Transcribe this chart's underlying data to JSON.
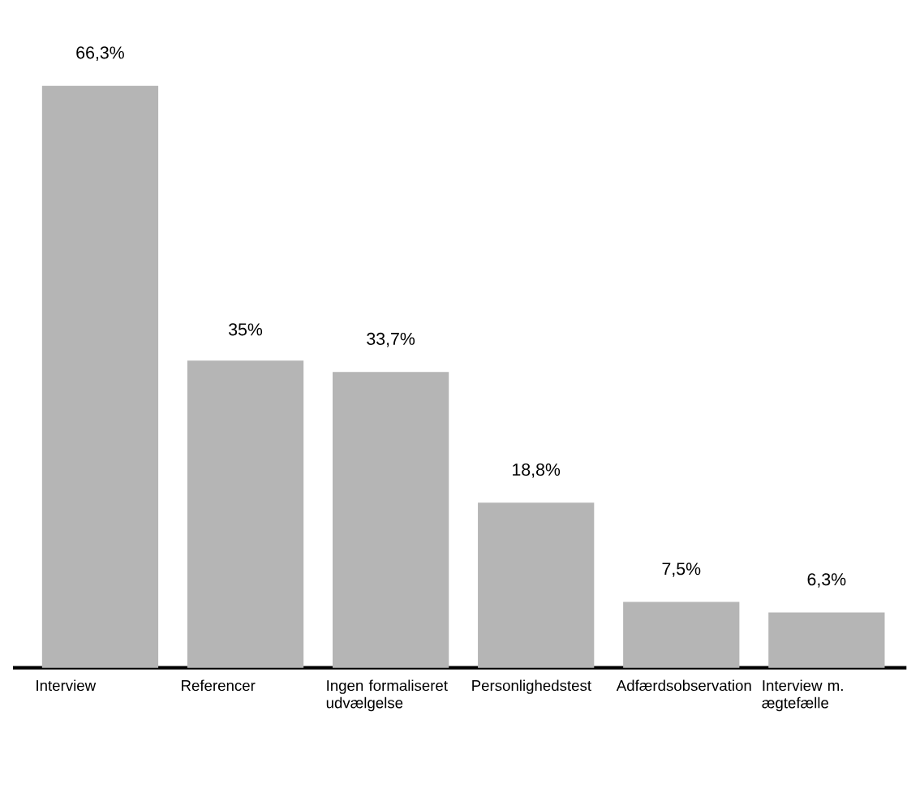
{
  "chart_data": {
    "type": "bar",
    "categories": [
      "Interview",
      "Referencer",
      "Ingen formaliseret udvælgelse",
      "Personlighedstest",
      "Adfærdsobservation",
      "Interview m. ægtefælle"
    ],
    "values": [
      66.3,
      35,
      33.7,
      18.8,
      7.5,
      6.3
    ],
    "value_labels": [
      "66,3%",
      "35%",
      "33,7%",
      "18,8%",
      "7,5%",
      "6,3%"
    ],
    "color": "#b5b5b5"
  }
}
